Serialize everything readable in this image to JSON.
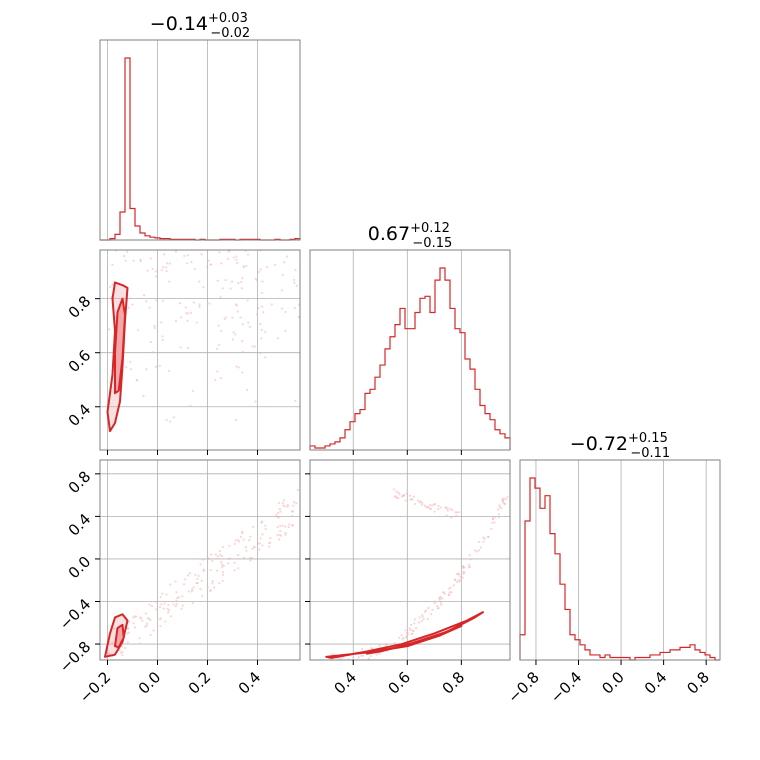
{
  "colors": {
    "series": "#d62728",
    "fill": "#f4a7a8",
    "scatter": "#f2b4b4",
    "grid": "#b0b0b0",
    "frame": "#808080"
  },
  "chart_data": {
    "type": "corner",
    "n_params": 3,
    "titles": [
      {
        "median": "−0.14",
        "plus": "+0.03",
        "minus": "−0.02"
      },
      {
        "median": "0.67",
        "plus": "+0.12",
        "minus": "−0.15"
      },
      {
        "median": "−0.72",
        "plus": "+0.15",
        "minus": "−0.11"
      }
    ],
    "ranges": [
      [
        -0.23,
        0.57
      ],
      [
        0.24,
        0.98
      ],
      [
        -0.95,
        0.93
      ]
    ],
    "ticks": [
      [
        -0.2,
        0.0,
        0.2,
        0.4
      ],
      [
        0.4,
        0.6,
        0.8
      ],
      [
        -0.8,
        -0.4,
        0.0,
        0.4,
        0.8
      ]
    ],
    "tick_labels": [
      [
        "−0.2",
        "0.0",
        "0.2",
        "0.4"
      ],
      [
        "0.4",
        "0.6",
        "0.8"
      ],
      [
        "−0.8",
        "−0.4",
        "0.0",
        "0.4",
        "0.8"
      ]
    ],
    "hist_counts": [
      [
        0,
        0,
        2,
        8,
        40,
        260,
        45,
        20,
        10,
        6,
        4,
        3,
        2,
        2,
        1,
        1,
        1,
        1,
        1,
        0,
        1,
        0,
        0,
        0,
        1,
        1,
        1,
        0,
        1,
        1,
        1,
        1,
        0,
        0,
        0,
        1,
        0,
        0,
        1,
        2
      ],
      [
        2,
        1,
        1,
        2,
        3,
        4,
        6,
        10,
        14,
        18,
        20,
        28,
        30,
        36,
        42,
        50,
        56,
        62,
        70,
        60,
        60,
        68,
        75,
        76,
        68,
        84,
        90,
        84,
        70,
        60,
        58,
        45,
        40,
        30,
        22,
        18,
        15,
        10,
        8,
        6
      ],
      [
        10,
        55,
        72,
        68,
        60,
        65,
        50,
        42,
        30,
        20,
        10,
        8,
        6,
        4,
        2,
        2,
        1,
        2,
        1,
        1,
        1,
        1,
        0,
        1,
        1,
        1,
        2,
        2,
        3,
        3,
        4,
        4,
        5,
        5,
        6,
        4,
        3,
        2,
        1,
        0
      ]
    ],
    "contours": {
      "p1_p0": [
        {
          "level": "outer",
          "points": [
            [
              -0.19,
              0.31
            ],
            [
              -0.2,
              0.38
            ],
            [
              -0.18,
              0.52
            ],
            [
              -0.17,
              0.68
            ],
            [
              -0.18,
              0.8
            ],
            [
              -0.17,
              0.86
            ],
            [
              -0.14,
              0.85
            ],
            [
              -0.12,
              0.84
            ],
            [
              -0.13,
              0.72
            ],
            [
              -0.14,
              0.55
            ],
            [
              -0.15,
              0.42
            ],
            [
              -0.17,
              0.34
            ]
          ]
        },
        {
          "level": "inner",
          "points": [
            [
              -0.17,
              0.45
            ],
            [
              -0.17,
              0.6
            ],
            [
              -0.16,
              0.75
            ],
            [
              -0.14,
              0.8
            ],
            [
              -0.13,
              0.74
            ],
            [
              -0.14,
              0.58
            ],
            [
              -0.155,
              0.46
            ]
          ]
        }
      ],
      "p2_p0": [
        {
          "level": "outer",
          "points": [
            [
              -0.21,
              -0.92
            ],
            [
              -0.19,
              -0.7
            ],
            [
              -0.17,
              -0.55
            ],
            [
              -0.14,
              -0.52
            ],
            [
              -0.12,
              -0.58
            ],
            [
              -0.14,
              -0.78
            ],
            [
              -0.17,
              -0.9
            ]
          ]
        },
        {
          "level": "inner",
          "points": [
            [
              -0.17,
              -0.82
            ],
            [
              -0.16,
              -0.65
            ],
            [
              -0.14,
              -0.62
            ],
            [
              -0.135,
              -0.74
            ],
            [
              -0.155,
              -0.83
            ]
          ]
        }
      ],
      "p2_p1": [
        {
          "level": "outer",
          "points": [
            [
              0.3,
              -0.92
            ],
            [
              0.45,
              -0.88
            ],
            [
              0.6,
              -0.82
            ],
            [
              0.72,
              -0.72
            ],
            [
              0.85,
              -0.55
            ],
            [
              0.88,
              -0.5
            ],
            [
              0.82,
              -0.58
            ],
            [
              0.7,
              -0.7
            ],
            [
              0.58,
              -0.8
            ],
            [
              0.45,
              -0.87
            ],
            [
              0.32,
              -0.93
            ]
          ]
        },
        {
          "level": "inner",
          "points": [
            [
              0.45,
              -0.89
            ],
            [
              0.6,
              -0.81
            ],
            [
              0.72,
              -0.72
            ],
            [
              0.8,
              -0.63
            ],
            [
              0.74,
              -0.69
            ],
            [
              0.62,
              -0.79
            ],
            [
              0.5,
              -0.87
            ]
          ]
        }
      ]
    },
    "scatter_hint": {
      "p1_p0": {
        "count": 180,
        "x_range": [
          -0.2,
          0.57
        ],
        "y_range": [
          0.3,
          0.98
        ]
      },
      "p2_p0": {
        "count": 200,
        "x_range": [
          -0.2,
          0.57
        ],
        "y_range": [
          -0.9,
          0.6
        ]
      },
      "p2_p1": {
        "count": 200,
        "x_range": [
          0.3,
          0.98
        ],
        "y_range": [
          -0.95,
          0.6
        ]
      }
    }
  }
}
